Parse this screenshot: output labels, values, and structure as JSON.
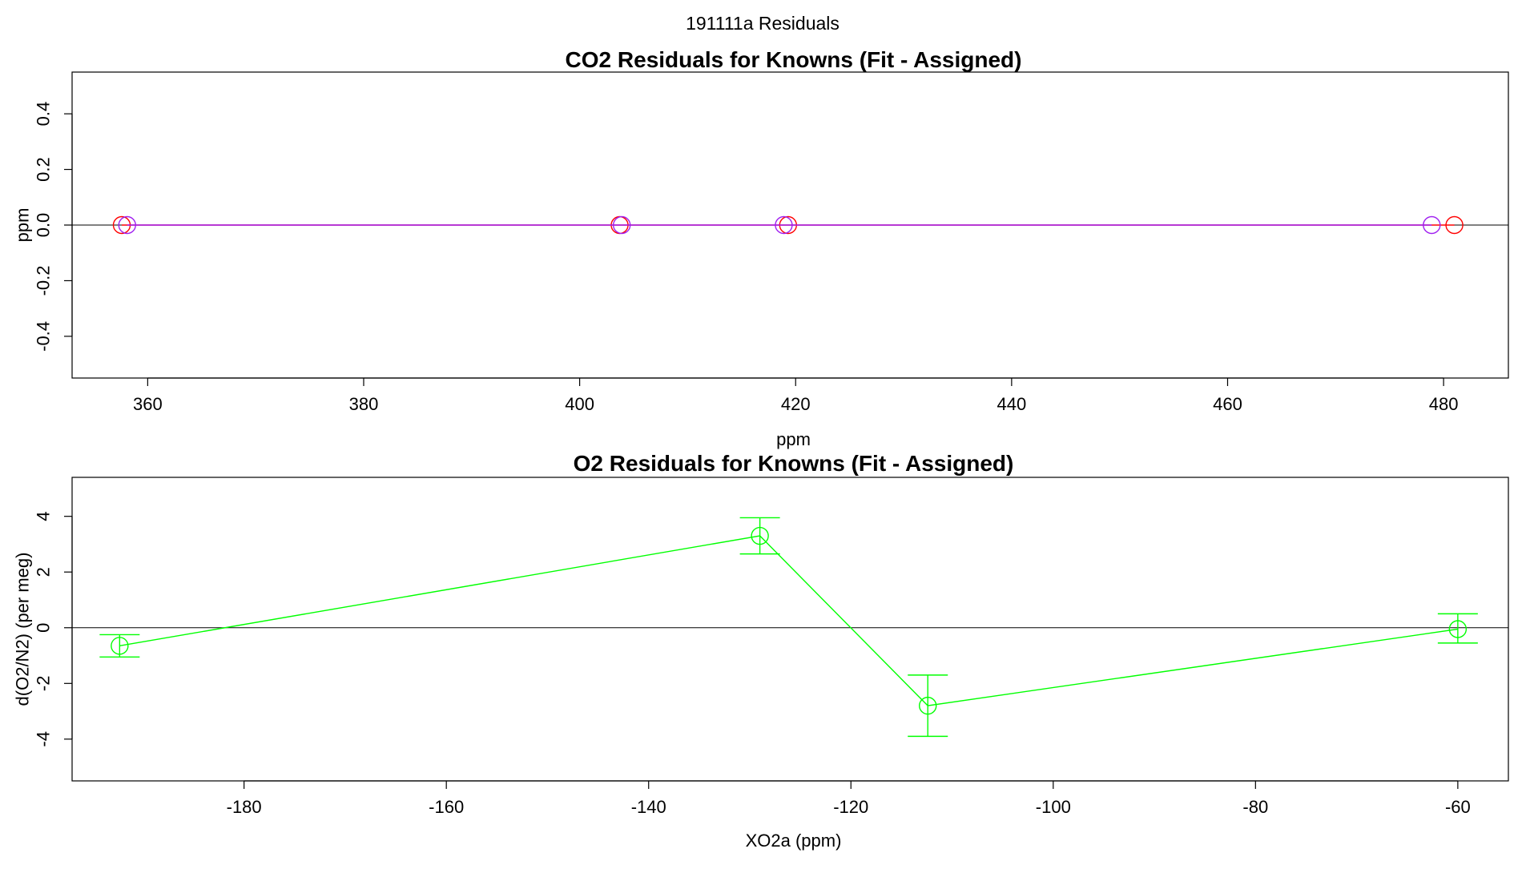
{
  "page": {
    "super_title": "191111a  Residuals"
  },
  "chart_data": [
    {
      "type": "scatter",
      "title": "CO2 Residuals for Knowns (Fit - Assigned)",
      "xlabel": "ppm",
      "ylabel": "ppm",
      "xlim": [
        353,
        486
      ],
      "ylim": [
        -0.55,
        0.55
      ],
      "xticks": [
        360,
        380,
        400,
        420,
        440,
        460,
        480
      ],
      "yticks": [
        -0.4,
        -0.2,
        0.0,
        0.2,
        0.4
      ],
      "ytick_labels": [
        "-0.4",
        "-0.2",
        "0.0",
        "0.2",
        "0.4"
      ],
      "zero_line": true,
      "series": [
        {
          "color": "#ff0000",
          "x": [
            357.6,
            403.7,
            419.3,
            481.0
          ],
          "y": [
            0,
            0,
            0,
            0
          ],
          "connect": true
        },
        {
          "color": "#a020f0",
          "x": [
            358.1,
            403.9,
            418.9,
            478.9
          ],
          "y": [
            0,
            0,
            0,
            0
          ],
          "connect": true
        }
      ]
    },
    {
      "type": "scatter",
      "title": "O2 Residuals for Knowns (Fit - Assigned)",
      "xlabel": "XO2a (ppm)",
      "ylabel": "d(O2/N2) (per meg)",
      "xlim": [
        -197,
        -55
      ],
      "ylim": [
        -5.5,
        5.4
      ],
      "xticks": [
        -180,
        -160,
        -140,
        -120,
        -100,
        -80,
        -60
      ],
      "yticks": [
        -4,
        -2,
        0,
        2,
        4
      ],
      "ytick_labels": [
        "-4",
        "-2",
        "0",
        "2",
        "4"
      ],
      "zero_line": true,
      "series": [
        {
          "color": "#00ff00",
          "x": [
            -192.3,
            -129.0,
            -112.4,
            -60.0
          ],
          "y": [
            -0.65,
            3.3,
            -2.8,
            -0.05
          ],
          "err_low": [
            -1.05,
            2.65,
            -3.9,
            -0.55
          ],
          "err_high": [
            -0.25,
            3.95,
            -1.7,
            0.5
          ],
          "connect": true
        }
      ]
    }
  ]
}
